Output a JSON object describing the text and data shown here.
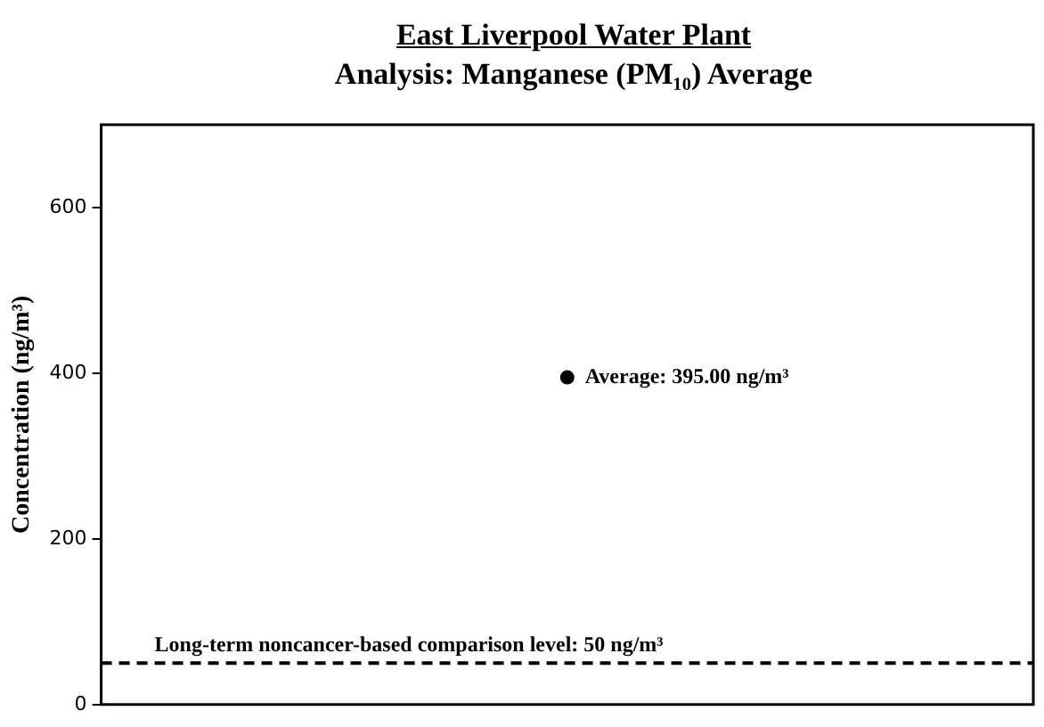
{
  "chart_data": {
    "type": "scatter",
    "title": "East Liverpool Water Plant",
    "subtitle": "Analysis: Manganese (PM₁₀) Average",
    "ylabel": "Concentration (ng/m³)",
    "categories": [
      null
    ],
    "series": [
      {
        "color": "#000000",
        "values": [
          395
        ]
      }
    ],
    "ylim": [
      0,
      700
    ],
    "yticks": [
      0,
      200,
      400,
      600
    ],
    "grid": false,
    "legend": false,
    "marker": "circle",
    "tick_labels": "y",
    "ref_lines": [
      {
        "axis": "y",
        "value": 50,
        "label": "Long-term noncancer-based comparison level: 50 ng/m³",
        "color": "#000000",
        "line_style": "dashed"
      }
    ],
    "annotations": [
      "Average: 395.00 ng/m³"
    ]
  }
}
